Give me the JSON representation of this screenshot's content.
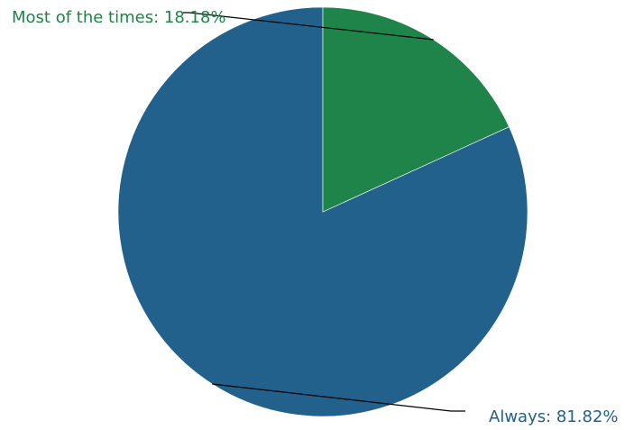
{
  "chart_data": {
    "type": "pie",
    "slices": [
      {
        "label": "Always",
        "value": 81.82,
        "display": "Always: 81.82%",
        "color": "#21618c"
      },
      {
        "label": "Most of the times",
        "value": 18.18,
        "display": "Most of the times: 18.18%",
        "color": "#1e8449"
      }
    ],
    "start_angle_deg": 0,
    "direction": "counterclockwise",
    "label_color_matches_slice": true,
    "leader_line_color": "#000000",
    "legend": "none",
    "grid": false
  }
}
